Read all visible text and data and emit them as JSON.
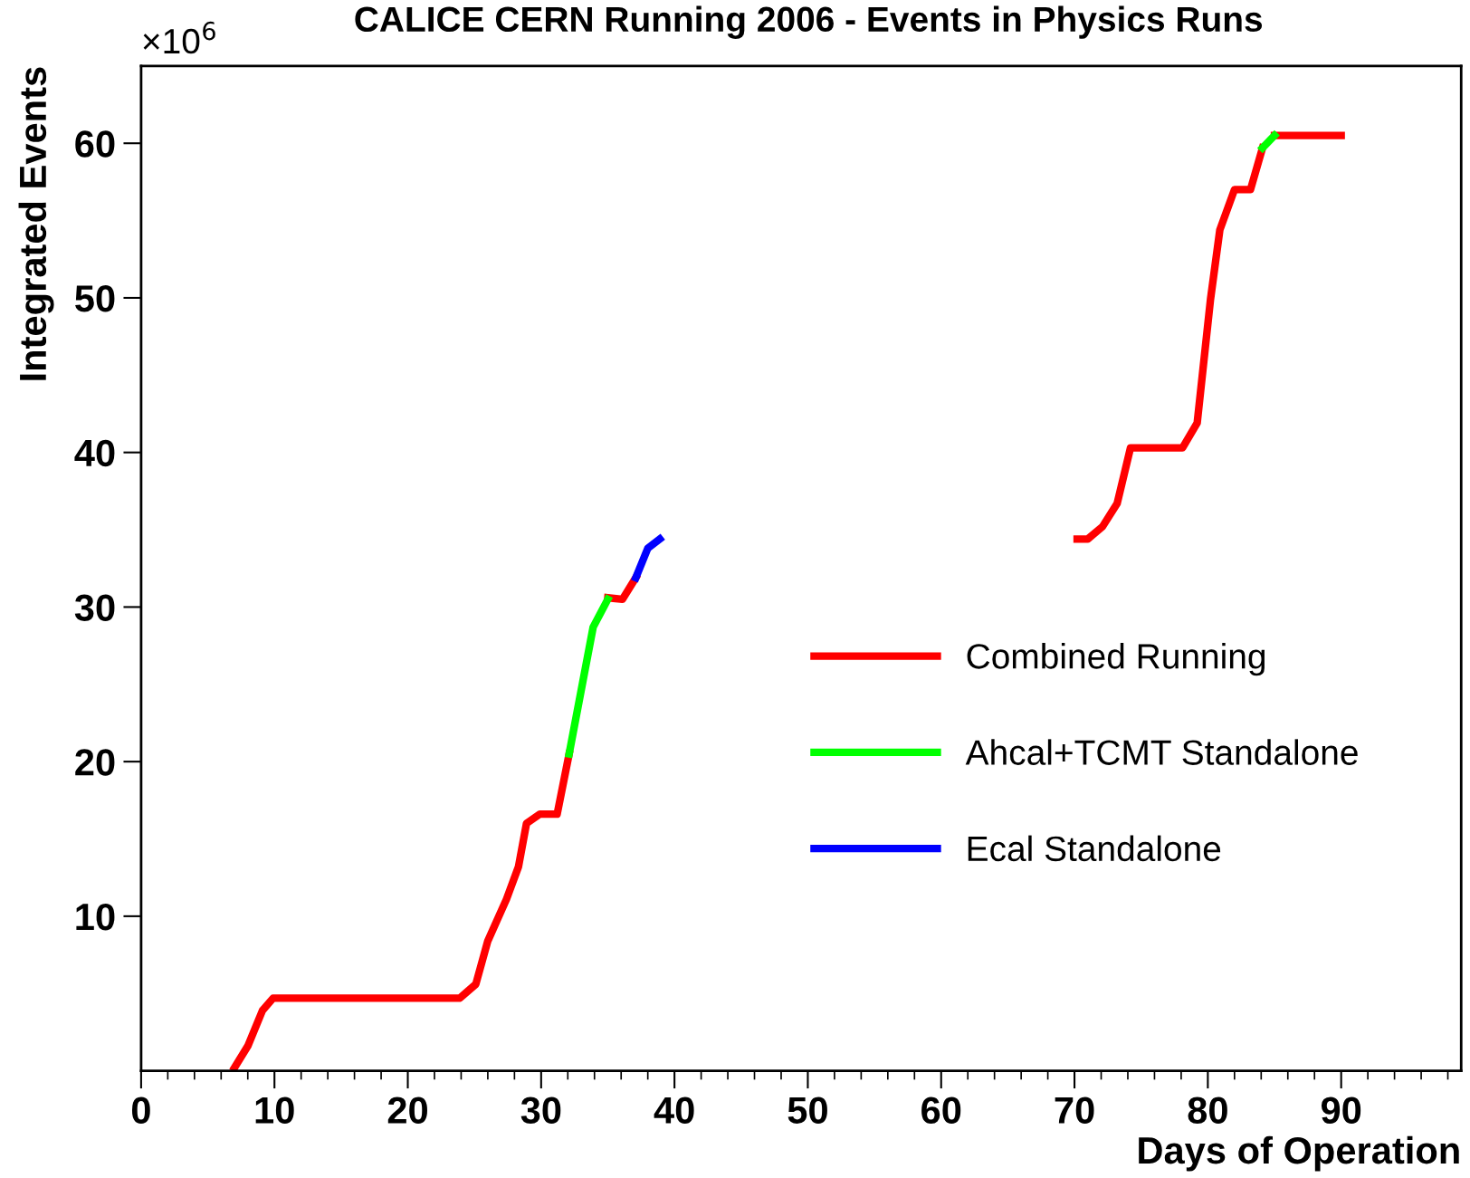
{
  "chart_data": {
    "type": "line",
    "title": "CALICE CERN Running 2006 - Events in Physics Runs",
    "xlabel": "Days of Operation",
    "ylabel": "Integrated Events",
    "annotations": [
      "×10$^{6}$"
    ],
    "series": [
      {
        "name": "Combined Running",
        "color": "#ff0000",
        "x": [
          7.0,
          8.0,
          9.1,
          9.9,
          23.9,
          25.1,
          26.0,
          27.4,
          28.3,
          28.9,
          29.9,
          31.2,
          32.1,
          33.0,
          35.0,
          36.1,
          37.1,
          50,
          70.2,
          71.0,
          72.1,
          73.2,
          74.2,
          78.1,
          79.2,
          80.2,
          80.9,
          82.0,
          83.2,
          84.1,
          84.5,
          85.0,
          90.0
        ],
        "values": [
          0.2,
          1.6,
          3.9,
          4.7,
          4.7,
          5.6,
          8.4,
          11.1,
          13.2,
          16.0,
          16.6,
          16.6,
          20.5,
          null,
          30.6,
          30.5,
          31.9,
          null,
          34.4,
          34.4,
          35.2,
          36.7,
          40.3,
          40.3,
          41.9,
          49.9,
          54.4,
          57.0,
          57.0,
          59.7,
          null,
          60.5,
          60.5
        ]
      },
      {
        "name": "Ahcal+TCMT Standalone",
        "color": "#00ff00",
        "x": [
          32.1,
          33.9,
          35.0,
          60,
          84.1,
          85.0
        ],
        "values": [
          20.5,
          28.7,
          30.5,
          null,
          59.7,
          60.5
        ]
      },
      {
        "name": "Ecal Standalone",
        "color": "#0000ff",
        "x": [
          37.1,
          38.0,
          38.9
        ],
        "values": [
          31.9,
          33.8,
          34.4
        ]
      }
    ],
    "xlim": [
      0,
      99
    ],
    "xticks": [
      0,
      10,
      20,
      30,
      40,
      50,
      60,
      70,
      80,
      90
    ],
    "ylim": [
      0,
      65
    ],
    "yticks": [
      10,
      20,
      30,
      40,
      50,
      60
    ],
    "legend": "lower right",
    "grid": false,
    "marker": "none",
    "line_style": "solid"
  }
}
